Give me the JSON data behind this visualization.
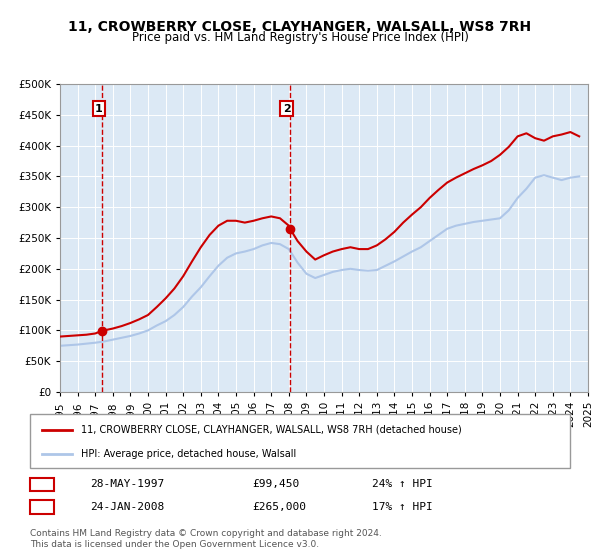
{
  "title": "11, CROWBERRY CLOSE, CLAYHANGER, WALSALL, WS8 7RH",
  "subtitle": "Price paid vs. HM Land Registry's House Price Index (HPI)",
  "hpi_label": "HPI: Average price, detached house, Walsall",
  "property_label": "11, CROWBERRY CLOSE, CLAYHANGER, WALSALL, WS8 7RH (detached house)",
  "legend_text_1": "11, CROWBERRY CLOSE, CLAYHANGER, WALSALL, WS8 7RH (detached house)",
  "legend_text_2": "HPI: Average price, detached house, Walsall",
  "sale1_date": "28-MAY-1997",
  "sale1_price": "£99,450",
  "sale1_hpi": "24% ↑ HPI",
  "sale2_date": "24-JAN-2008",
  "sale2_price": "£265,000",
  "sale2_hpi": "17% ↑ HPI",
  "sale1_x": 1997.41,
  "sale1_y": 99450,
  "sale2_x": 2008.07,
  "sale2_y": 265000,
  "vline1_x": 1997.41,
  "vline2_x": 2008.07,
  "hpi_color": "#aec6e8",
  "property_color": "#cc0000",
  "dot_color": "#cc0000",
  "vline_color": "#cc0000",
  "background_color": "#dce9f5",
  "plot_bg_color": "#dce9f5",
  "ylim": [
    0,
    500000
  ],
  "xlim": [
    1995,
    2025
  ],
  "footer_text": "Contains HM Land Registry data © Crown copyright and database right 2024.\nThis data is licensed under the Open Government Licence v3.0.",
  "hpi_data_x": [
    1995,
    1995.5,
    1996,
    1996.5,
    1997,
    1997.5,
    1998,
    1998.5,
    1999,
    1999.5,
    2000,
    2000.5,
    2001,
    2001.5,
    2002,
    2002.5,
    2003,
    2003.5,
    2004,
    2004.5,
    2005,
    2005.5,
    2006,
    2006.5,
    2007,
    2007.5,
    2008,
    2008.5,
    2009,
    2009.5,
    2010,
    2010.5,
    2011,
    2011.5,
    2012,
    2012.5,
    2013,
    2013.5,
    2014,
    2014.5,
    2015,
    2015.5,
    2016,
    2016.5,
    2017,
    2017.5,
    2018,
    2018.5,
    2019,
    2019.5,
    2020,
    2020.5,
    2021,
    2021.5,
    2022,
    2022.5,
    2023,
    2023.5,
    2024,
    2024.5
  ],
  "hpi_data_y": [
    75000,
    76000,
    77000,
    78500,
    80000,
    82000,
    85000,
    88000,
    91000,
    95000,
    100000,
    108000,
    115000,
    125000,
    138000,
    155000,
    170000,
    188000,
    205000,
    218000,
    225000,
    228000,
    232000,
    238000,
    242000,
    240000,
    232000,
    210000,
    192000,
    185000,
    190000,
    195000,
    198000,
    200000,
    198000,
    197000,
    198000,
    205000,
    212000,
    220000,
    228000,
    235000,
    245000,
    255000,
    265000,
    270000,
    273000,
    276000,
    278000,
    280000,
    282000,
    295000,
    315000,
    330000,
    348000,
    352000,
    348000,
    344000,
    348000,
    350000
  ],
  "property_data_x": [
    1995,
    1995.5,
    1996,
    1996.5,
    1997,
    1997.41,
    1997.5,
    1998,
    1998.5,
    1999,
    1999.5,
    2000,
    2000.5,
    2001,
    2001.5,
    2002,
    2002.5,
    2003,
    2003.5,
    2004,
    2004.5,
    2005,
    2005.5,
    2006,
    2006.5,
    2007,
    2007.5,
    2008,
    2008.07,
    2008.5,
    2009,
    2009.5,
    2010,
    2010.5,
    2011,
    2011.5,
    2012,
    2012.5,
    2013,
    2013.5,
    2014,
    2014.5,
    2015,
    2015.5,
    2016,
    2016.5,
    2017,
    2017.5,
    2018,
    2018.5,
    2019,
    2019.5,
    2020,
    2020.5,
    2021,
    2021.5,
    2022,
    2022.5,
    2023,
    2023.5,
    2024,
    2024.5
  ],
  "property_data_y": [
    90000,
    91000,
    92000,
    93000,
    95000,
    99450,
    100000,
    103000,
    107000,
    112000,
    118000,
    125000,
    138000,
    152000,
    168000,
    188000,
    212000,
    235000,
    255000,
    270000,
    278000,
    278000,
    275000,
    278000,
    282000,
    285000,
    282000,
    270000,
    265000,
    245000,
    228000,
    215000,
    222000,
    228000,
    232000,
    235000,
    232000,
    232000,
    238000,
    248000,
    260000,
    275000,
    288000,
    300000,
    315000,
    328000,
    340000,
    348000,
    355000,
    362000,
    368000,
    375000,
    385000,
    398000,
    415000,
    420000,
    412000,
    408000,
    415000,
    418000,
    422000,
    415000
  ]
}
